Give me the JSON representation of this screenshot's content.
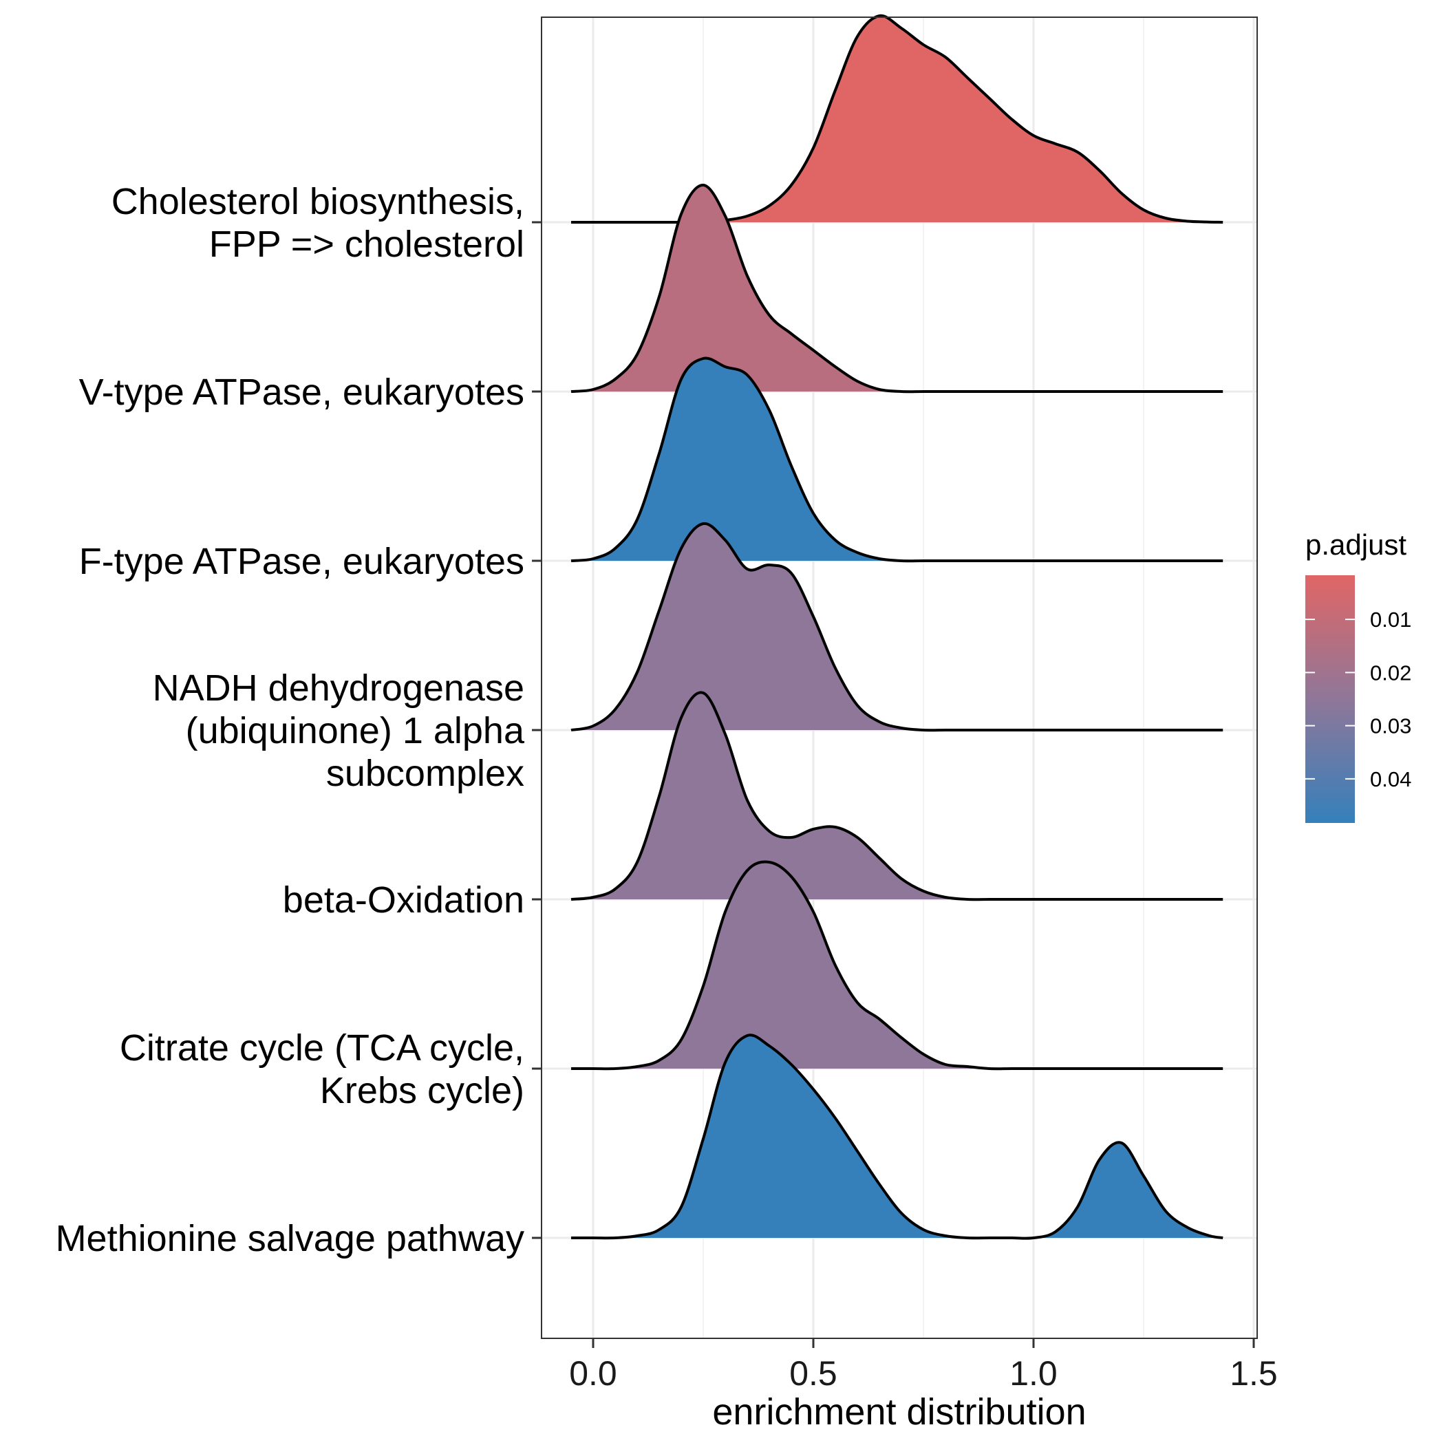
{
  "chart_data": {
    "type": "ridgeline",
    "xlabel": "enrichment distribution",
    "ylabel": "",
    "xlim": [
      -0.12,
      1.5
    ],
    "x_ticks": [
      "0.0",
      "0.5",
      "1.0",
      "1.5"
    ],
    "x_tick_values": [
      0.0,
      0.5,
      1.0,
      1.5
    ],
    "grid": true,
    "legend": {
      "title": "p.adjust",
      "placement": "right",
      "ticks": [
        "0.01",
        "0.02",
        "0.03",
        "0.04"
      ],
      "tick_values": [
        0.01,
        0.02,
        0.03,
        0.04
      ],
      "range": [
        0.0017,
        0.0483
      ],
      "color_low": "#e06666",
      "color_high": "#3580bb"
    },
    "x": [
      -0.05,
      0.0,
      0.05,
      0.1,
      0.15,
      0.2,
      0.25,
      0.3,
      0.35,
      0.4,
      0.45,
      0.5,
      0.55,
      0.6,
      0.65,
      0.7,
      0.75,
      0.8,
      0.85,
      0.9,
      0.95,
      1.0,
      1.05,
      1.1,
      1.15,
      1.2,
      1.25,
      1.3,
      1.35,
      1.4,
      1.43
    ],
    "series": [
      {
        "name": "Cholesterol biosynthesis,\nFPP => cholesterol",
        "p_adjust": 0.0017,
        "color": "#e06666",
        "density": [
          0.0,
          0.0,
          0.0,
          0.0,
          0.0,
          0.0,
          0.002,
          0.01,
          0.03,
          0.08,
          0.18,
          0.36,
          0.64,
          0.9,
          1.0,
          0.94,
          0.86,
          0.8,
          0.7,
          0.6,
          0.5,
          0.42,
          0.38,
          0.34,
          0.25,
          0.14,
          0.06,
          0.02,
          0.005,
          0.001,
          0.0
        ]
      },
      {
        "name": "V-type ATPase, eukaryotes",
        "p_adjust": 0.015,
        "color": "#b86e7e",
        "density": [
          0.0,
          0.01,
          0.06,
          0.18,
          0.46,
          0.86,
          1.0,
          0.85,
          0.56,
          0.37,
          0.28,
          0.2,
          0.12,
          0.05,
          0.01,
          0.0,
          0.0,
          0.0,
          0.0,
          0.0,
          0.0,
          0.0,
          0.0,
          0.0,
          0.0,
          0.0,
          0.0,
          0.0,
          0.0,
          0.0,
          0.0
        ]
      },
      {
        "name": "F-type ATPase, eukaryotes",
        "p_adjust": 0.0483,
        "color": "#3580bb",
        "density": [
          0.0,
          0.01,
          0.06,
          0.2,
          0.52,
          0.88,
          0.98,
          0.94,
          0.9,
          0.73,
          0.46,
          0.23,
          0.1,
          0.04,
          0.01,
          0.0,
          0.0,
          0.0,
          0.0,
          0.0,
          0.0,
          0.0,
          0.0,
          0.0,
          0.0,
          0.0,
          0.0,
          0.0,
          0.0,
          0.0,
          0.0
        ]
      },
      {
        "name": "NADH dehydrogenase\n(ubiquinone) 1 alpha\nsubcomplex",
        "p_adjust": 0.032,
        "color": "#8f7799",
        "density": [
          0.0,
          0.02,
          0.1,
          0.28,
          0.58,
          0.88,
          1.0,
          0.92,
          0.78,
          0.8,
          0.76,
          0.55,
          0.3,
          0.12,
          0.04,
          0.01,
          0.0,
          0.0,
          0.0,
          0.0,
          0.0,
          0.0,
          0.0,
          0.0,
          0.0,
          0.0,
          0.0,
          0.0,
          0.0,
          0.0,
          0.0
        ]
      },
      {
        "name": "beta-Oxidation",
        "p_adjust": 0.032,
        "color": "#8f7799",
        "density": [
          0.0,
          0.01,
          0.05,
          0.18,
          0.5,
          0.88,
          1.0,
          0.8,
          0.48,
          0.33,
          0.3,
          0.34,
          0.35,
          0.3,
          0.2,
          0.1,
          0.04,
          0.01,
          0.0,
          0.0,
          0.0,
          0.0,
          0.0,
          0.0,
          0.0,
          0.0,
          0.0,
          0.0,
          0.0,
          0.0,
          0.0
        ]
      },
      {
        "name": "Citrate cycle (TCA cycle,\nKrebs cycle)",
        "p_adjust": 0.032,
        "color": "#8f7799",
        "density": [
          0.0,
          0.0,
          0.0,
          0.01,
          0.04,
          0.14,
          0.4,
          0.76,
          0.96,
          1.0,
          0.93,
          0.76,
          0.5,
          0.32,
          0.24,
          0.15,
          0.07,
          0.02,
          0.01,
          0.0,
          0.0,
          0.0,
          0.0,
          0.0,
          0.0,
          0.0,
          0.0,
          0.0,
          0.0,
          0.0,
          0.0
        ]
      },
      {
        "name": "Methionine salvage pathway",
        "p_adjust": 0.0483,
        "color": "#3580bb",
        "density": [
          0.0,
          0.0,
          0.0,
          0.01,
          0.04,
          0.15,
          0.48,
          0.85,
          0.98,
          0.93,
          0.84,
          0.72,
          0.58,
          0.42,
          0.26,
          0.12,
          0.04,
          0.01,
          0.0,
          0.0,
          0.0,
          0.0,
          0.03,
          0.15,
          0.38,
          0.46,
          0.3,
          0.13,
          0.05,
          0.01,
          0.0
        ]
      }
    ]
  }
}
